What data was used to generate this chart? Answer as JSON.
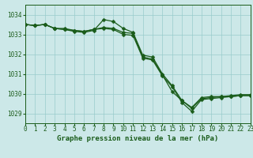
{
  "title": "Graphe pression niveau de la mer (hPa)",
  "bg_color": "#cce8e8",
  "grid_color": "#99cccc",
  "line_color": "#1a5c1a",
  "xlim": [
    0,
    23
  ],
  "ylim": [
    1028.5,
    1034.5
  ],
  "yticks": [
    1029,
    1030,
    1031,
    1032,
    1033,
    1034
  ],
  "xticks": [
    0,
    1,
    2,
    3,
    4,
    5,
    6,
    7,
    8,
    9,
    10,
    11,
    12,
    13,
    14,
    15,
    16,
    17,
    18,
    19,
    20,
    21,
    22,
    23
  ],
  "series": [
    {
      "x": [
        0,
        1,
        2,
        3,
        4,
        5,
        6,
        7,
        8,
        9,
        10,
        11,
        12,
        13,
        14,
        15,
        16,
        17,
        18,
        19,
        20,
        21,
        22,
        23
      ],
      "y": [
        1033.5,
        1033.45,
        1033.5,
        1033.3,
        1033.3,
        1033.2,
        1033.15,
        1033.25,
        1033.35,
        1033.3,
        1033.1,
        1033.05,
        1031.85,
        1031.75,
        1030.95,
        1030.1,
        1029.65,
        1029.25,
        1029.75,
        1029.8,
        1029.85,
        1029.85,
        1029.9,
        1029.9
      ]
    },
    {
      "x": [
        0,
        1,
        2,
        3,
        4,
        5,
        6,
        7,
        8,
        9,
        10,
        11,
        12,
        13,
        14,
        15,
        16,
        17,
        18,
        19,
        20,
        21,
        22,
        23
      ],
      "y": [
        1033.5,
        1033.45,
        1033.5,
        1033.3,
        1033.25,
        1033.2,
        1033.15,
        1033.25,
        1033.3,
        1033.25,
        1033.0,
        1032.95,
        1031.8,
        1031.7,
        1030.9,
        1030.35,
        1029.55,
        1029.1,
        1029.7,
        1029.75,
        1029.8,
        1029.85,
        1029.9,
        1029.9
      ]
    },
    {
      "x": [
        0,
        1,
        2,
        3,
        4,
        5,
        6,
        7,
        8,
        9,
        10,
        11,
        12,
        13,
        14,
        15,
        16,
        17,
        18,
        19,
        20,
        21,
        22,
        23
      ],
      "y": [
        1033.5,
        1033.45,
        1033.5,
        1033.3,
        1033.25,
        1033.15,
        1033.1,
        1033.2,
        1033.75,
        1033.65,
        1033.3,
        1033.1,
        1031.95,
        1031.85,
        1031.0,
        1030.4,
        1029.65,
        1029.3,
        1029.8,
        1029.85,
        1029.85,
        1029.9,
        1029.95,
        1029.95
      ]
    }
  ],
  "marker": "D",
  "marker_size": 2.5,
  "line_width": 0.9,
  "tick_fontsize": 5.5,
  "title_fontsize": 6.5
}
